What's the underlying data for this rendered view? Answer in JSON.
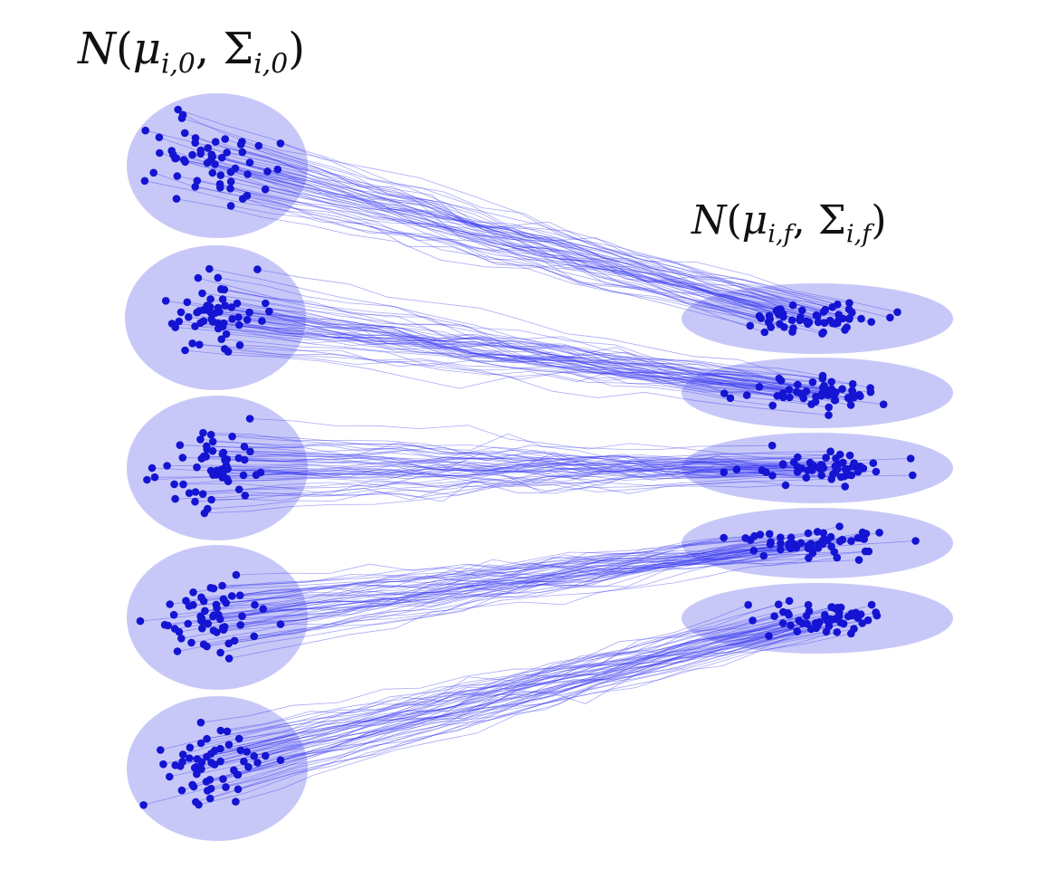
{
  "labels": {
    "initial": {
      "script_letter": "N",
      "mean": "μ",
      "cov": "Σ",
      "subscript": "i,0"
    },
    "final": {
      "script_letter": "N",
      "mean": "μ",
      "cov": "Σ",
      "subscript": "i,f"
    }
  },
  "colors": {
    "ellipse_fill": "#c8c8f8",
    "trajectory": "#3434f0",
    "point": "#1414d2",
    "text": "#111111"
  },
  "distributions": {
    "initial_count": 5,
    "final_count": 5,
    "paths_per_group": 55,
    "mapping": [
      [
        0,
        0
      ],
      [
        1,
        1
      ],
      [
        2,
        2
      ],
      [
        3,
        3
      ],
      [
        4,
        4
      ]
    ]
  }
}
